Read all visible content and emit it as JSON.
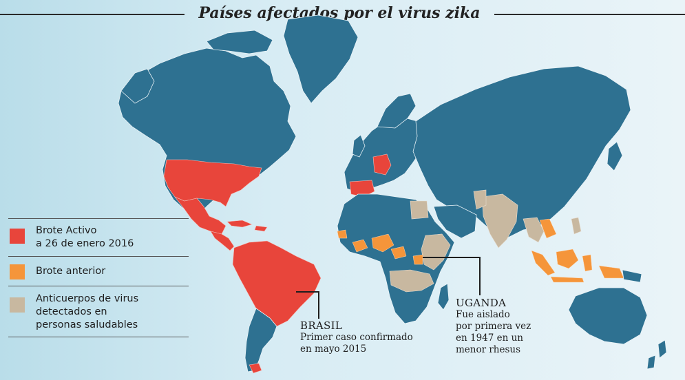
{
  "title": "Países afectados por el virus zika",
  "legend": {
    "items": [
      {
        "label_line1": "Brote Activo",
        "label_line2": "a 26 de enero 2016",
        "label_line3": "",
        "color": "#e8453b"
      },
      {
        "label_line1": "Brote anterior",
        "label_line2": "",
        "label_line3": "",
        "color": "#f5953a"
      },
      {
        "label_line1": "Anticuerpos de virus",
        "label_line2": "detectados en",
        "label_line3": "personas saludables",
        "color": "#c8b8a0"
      }
    ]
  },
  "colors": {
    "land": "#2e7191",
    "active": "#e8453b",
    "past": "#f5953a",
    "antibodies": "#c8b8a0",
    "ocean": "#d7ecf4"
  },
  "callouts": {
    "brasil": {
      "heading": "BRASIL",
      "line1": "Primer caso confirmado",
      "line2": "en mayo 2015"
    },
    "uganda": {
      "heading": "UGANDA",
      "line1": "Fue aislado",
      "line2": "por primera vez",
      "line3": "en 1947 en un",
      "line4": "menor rhesus"
    }
  }
}
